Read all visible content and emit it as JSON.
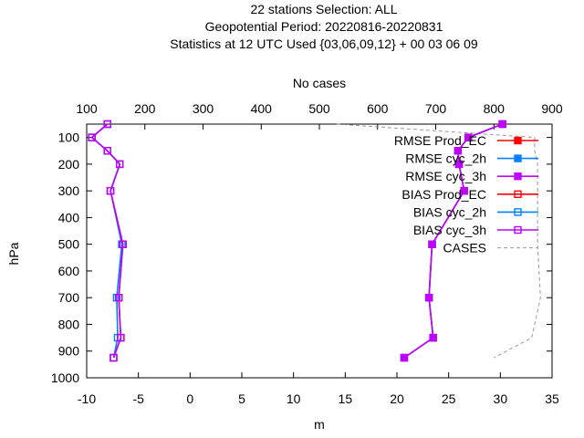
{
  "chart_data": {
    "type": "line",
    "title_lines": [
      "22 stations Selection: ALL",
      "Geopotential  Period: 20220816-20220831",
      "Statistics at 12 UTC  Used {03,06,09,12} + 00 03 06 09"
    ],
    "xlabel": "m",
    "ylabel": "hPa",
    "x2label": "No cases",
    "xlim": [
      -10,
      35
    ],
    "ylim": [
      1000,
      50
    ],
    "x2lim": [
      100,
      900
    ],
    "xticks": [
      "-10",
      "-5",
      "0",
      "5",
      "10",
      "15",
      "20",
      "25",
      "30",
      "35"
    ],
    "yticks": [
      "100",
      "200",
      "300",
      "400",
      "500",
      "600",
      "700",
      "800",
      "900",
      "1000"
    ],
    "x2ticks": [
      "100",
      "200",
      "300",
      "400",
      "500",
      "600",
      "700",
      "800",
      "900"
    ],
    "legend_position": "top-right",
    "levels": [
      50,
      100,
      150,
      200,
      300,
      500,
      700,
      850,
      925
    ],
    "series": [
      {
        "name": "RMSE Prod_EC",
        "color": "#ff0000",
        "marker": "filled-square",
        "dash": "none",
        "values": [
          30.2,
          26.9,
          25.9,
          26.0,
          26.5,
          23.4,
          23.1,
          23.5,
          20.7
        ]
      },
      {
        "name": "RMSE cyc_2h",
        "color": "#0080ff",
        "marker": "filled-square",
        "dash": "none",
        "values": [
          30.2,
          26.9,
          25.9,
          26.0,
          26.5,
          23.4,
          23.1,
          23.5,
          20.7
        ]
      },
      {
        "name": "RMSE cyc_3h",
        "color": "#c000ff",
        "marker": "filled-square",
        "dash": "none",
        "values": [
          30.2,
          26.9,
          25.9,
          26.0,
          26.5,
          23.4,
          23.1,
          23.5,
          20.7
        ]
      },
      {
        "name": "BIAS Prod_EC",
        "color": "#ff0000",
        "marker": "open-square",
        "dash": "none",
        "values": [
          -8.0,
          -9.5,
          -8.0,
          -6.8,
          -7.7,
          -6.5,
          -6.9,
          -6.7,
          -7.4
        ]
      },
      {
        "name": "BIAS cyc_2h",
        "color": "#0080ff",
        "marker": "open-square",
        "dash": "none",
        "values": [
          -8.0,
          -9.5,
          -8.0,
          -6.8,
          -7.7,
          -6.6,
          -7.1,
          -7.0,
          -7.4
        ]
      },
      {
        "name": "BIAS cyc_3h",
        "color": "#c000ff",
        "marker": "open-square",
        "dash": "none",
        "values": [
          -8.0,
          -9.5,
          -8.0,
          -6.8,
          -7.7,
          -6.5,
          -6.9,
          -6.7,
          -7.4
        ]
      },
      {
        "name": "CASES",
        "color": "#999999",
        "marker": "none",
        "dash": "dashed",
        "axis": "x2",
        "levels": [
          50,
          100,
          150,
          200,
          300,
          500,
          700,
          850,
          925
        ],
        "values": [
          530,
          870,
          870,
          875,
          875,
          875,
          880,
          865,
          800
        ]
      }
    ]
  }
}
